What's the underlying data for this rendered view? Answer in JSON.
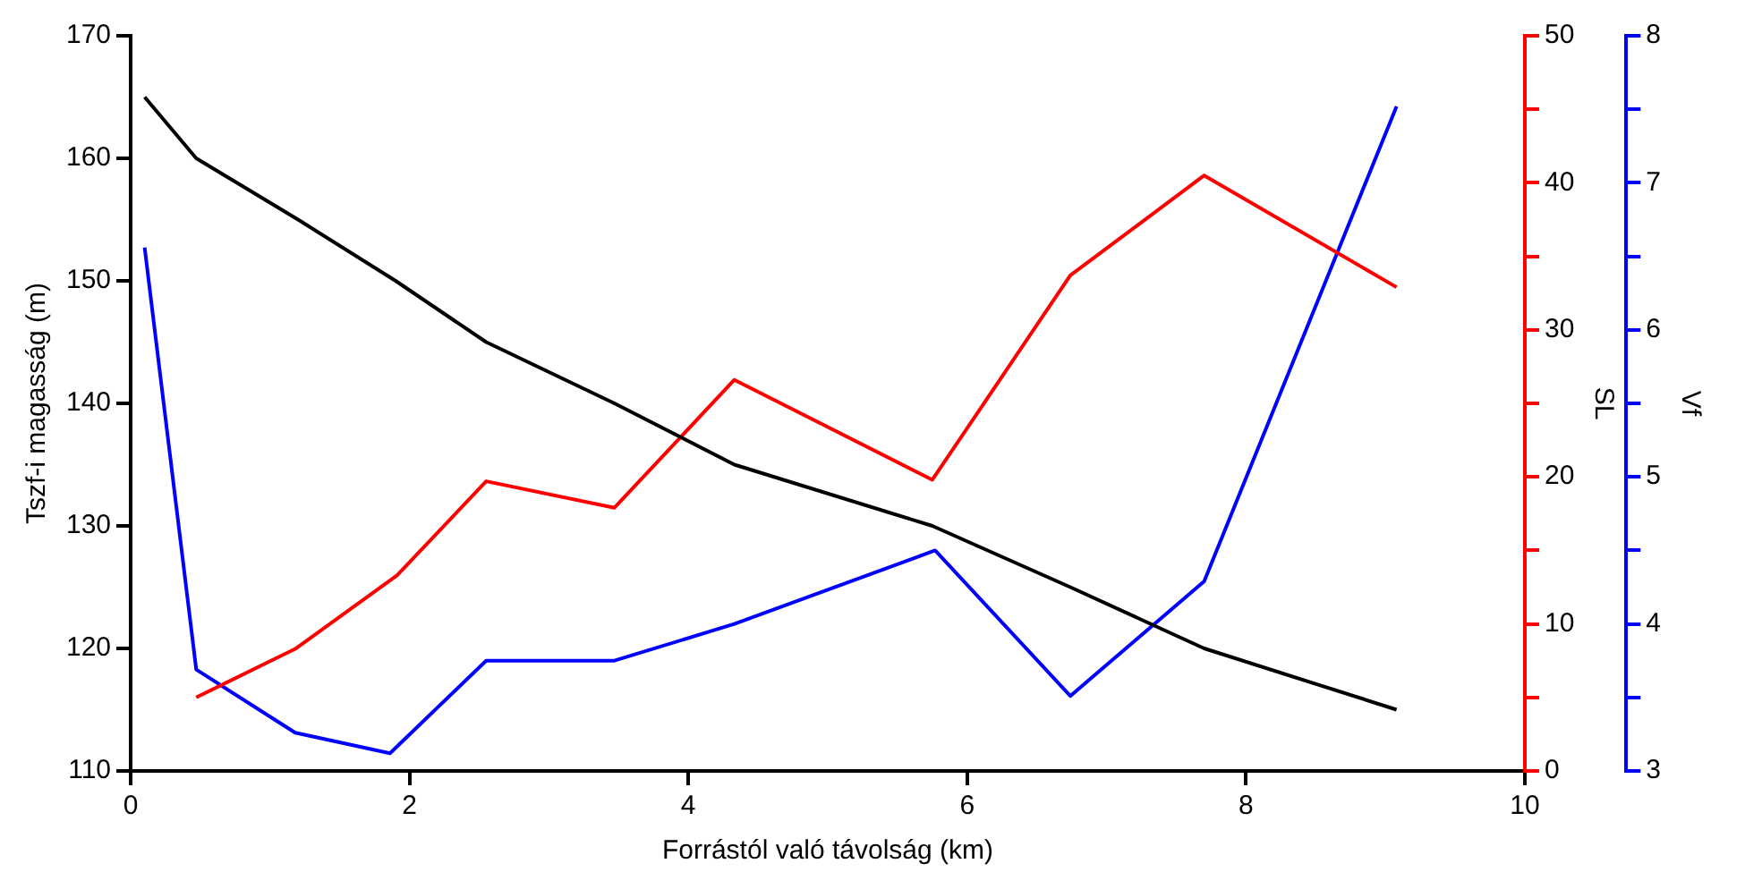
{
  "chart_data": {
    "type": "line",
    "xlabel": "Forrástól való távolság (km)",
    "ylabel": "Tszf-i magasság (m)",
    "y2label": "SL",
    "y3label": "Vf",
    "xlim": [
      0,
      10
    ],
    "xticks": [
      0,
      2,
      4,
      6,
      8,
      10
    ],
    "ylim": [
      110,
      170
    ],
    "yticks": [
      110,
      120,
      130,
      140,
      150,
      160,
      170
    ],
    "y2lim": [
      0,
      50
    ],
    "y2ticks": [
      0,
      {
        "value": 5,
        "label": null
      },
      10,
      {
        "value": 15,
        "label": null
      },
      20,
      {
        "value": 25,
        "label": null
      },
      30,
      {
        "value": 35,
        "label": null
      },
      40,
      {
        "value": 45,
        "label": null
      },
      50
    ],
    "y3lim": [
      3,
      8
    ],
    "y3ticks": [
      3,
      {
        "value": 3.5,
        "label": null
      },
      4,
      {
        "value": 4.5,
        "label": null
      },
      5,
      {
        "value": 5.5,
        "label": null
      },
      6,
      {
        "value": 6.5,
        "label": null
      },
      7,
      {
        "value": 7.5,
        "label": null
      },
      8
    ],
    "marker": "none",
    "grid": false,
    "series": [
      {
        "color": "#000000",
        "axis": "y",
        "x": [
          0.1,
          0.47,
          1.2,
          1.9,
          2.55,
          3.47,
          4.33,
          5.75,
          6.74,
          7.7,
          9.08
        ],
        "values": [
          165,
          160,
          155,
          150,
          145,
          140,
          135,
          130,
          125,
          120,
          115
        ]
      },
      {
        "color": "#ff0000",
        "axis": "y2",
        "x": [
          0.47,
          1.18,
          1.91,
          2.55,
          3.47,
          4.33,
          5.75,
          6.74,
          7.7,
          9.08
        ],
        "values": [
          5,
          8.3,
          13.3,
          19.7,
          17.9,
          26.6,
          19.8,
          33.7,
          40.5,
          32.9
        ]
      },
      {
        "color": "#0000ff",
        "axis": "y3",
        "x": [
          0.1,
          0.47,
          1.18,
          1.86,
          2.55,
          3.47,
          4.33,
          5.77,
          6.74,
          7.7,
          9.08
        ],
        "values": [
          6.56,
          3.69,
          3.26,
          3.12,
          3.75,
          3.75,
          4.0,
          4.5,
          3.51,
          4.29,
          7.52
        ]
      }
    ]
  }
}
